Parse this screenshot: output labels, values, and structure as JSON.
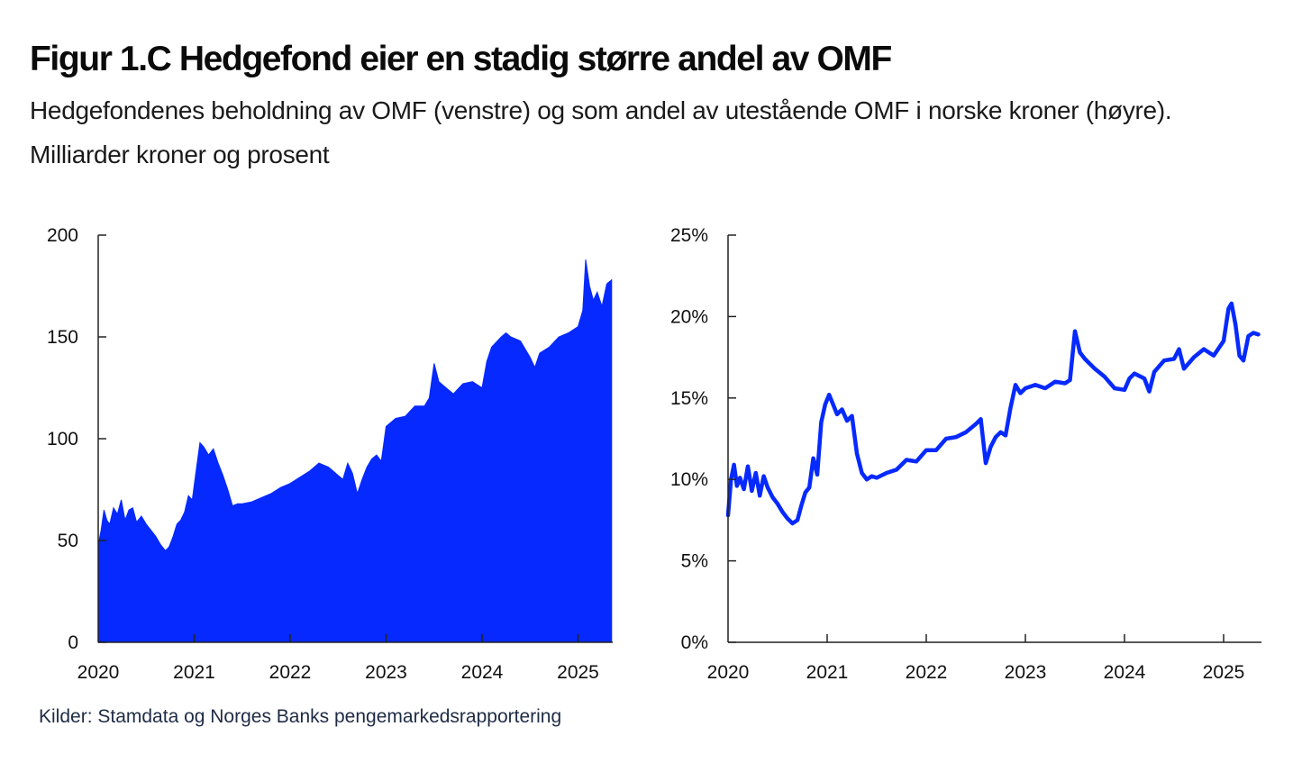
{
  "figure": {
    "title": "Figur 1.C Hedgefond eier en stadig større andel av OMF",
    "subtitle": "Hedgefondenes beholdning av OMF (venstre) og som andel av utestående OMF i norske kroner (høyre). Milliarder kroner og prosent",
    "source": "Kilder: Stamdata og Norges Banks pengemarkedsrapportering",
    "series_color": "#0529ff"
  },
  "chart_data": [
    {
      "type": "area",
      "title": "Hedgefondenes beholdning av OMF",
      "ylabel": "Milliarder kroner",
      "xlabel": "",
      "xlim": [
        2020.0,
        2025.37
      ],
      "ylim": [
        0,
        200
      ],
      "yticks": [
        0,
        50,
        100,
        150,
        200
      ],
      "ytick_labels": [
        "0",
        "50",
        "100",
        "150",
        "200"
      ],
      "xticks": [
        2020,
        2021,
        2022,
        2023,
        2024,
        2025
      ],
      "xtick_labels": [
        "2020",
        "2021",
        "2022",
        "2023",
        "2024",
        "2025"
      ],
      "grid": false,
      "x": [
        2020.0,
        2020.03,
        2020.06,
        2020.09,
        2020.12,
        2020.16,
        2020.2,
        2020.24,
        2020.28,
        2020.32,
        2020.36,
        2020.4,
        2020.45,
        2020.5,
        2020.55,
        2020.6,
        2020.65,
        2020.7,
        2020.74,
        2020.78,
        2020.82,
        2020.86,
        2020.9,
        2020.94,
        2020.98,
        2021.02,
        2021.06,
        2021.1,
        2021.15,
        2021.2,
        2021.25,
        2021.3,
        2021.35,
        2021.4,
        2021.45,
        2021.5,
        2021.6,
        2021.7,
        2021.8,
        2021.9,
        2022.0,
        2022.1,
        2022.2,
        2022.3,
        2022.4,
        2022.5,
        2022.55,
        2022.6,
        2022.65,
        2022.7,
        2022.75,
        2022.8,
        2022.85,
        2022.9,
        2022.95,
        2023.0,
        2023.1,
        2023.2,
        2023.3,
        2023.4,
        2023.45,
        2023.5,
        2023.55,
        2023.6,
        2023.7,
        2023.8,
        2023.9,
        2024.0,
        2024.05,
        2024.1,
        2024.2,
        2024.25,
        2024.3,
        2024.4,
        2024.5,
        2024.55,
        2024.6,
        2024.7,
        2024.8,
        2024.9,
        2025.0,
        2025.05,
        2025.08,
        2025.12,
        2025.16,
        2025.2,
        2025.25,
        2025.3,
        2025.35
      ],
      "values": [
        48,
        55,
        65,
        60,
        58,
        66,
        63,
        70,
        60,
        65,
        66,
        59,
        62,
        58,
        55,
        52,
        48,
        45,
        47,
        52,
        58,
        60,
        64,
        72,
        70,
        84,
        98,
        96,
        92,
        95,
        88,
        82,
        75,
        67,
        68,
        68,
        69,
        71,
        73,
        76,
        78,
        81,
        84,
        88,
        86,
        82,
        80,
        88,
        83,
        73,
        80,
        86,
        90,
        92,
        89,
        106,
        110,
        111,
        116,
        116,
        120,
        137,
        128,
        126,
        122,
        127,
        128,
        125,
        138,
        145,
        150,
        152,
        150,
        148,
        140,
        135,
        142,
        145,
        150,
        152,
        155,
        163,
        188,
        175,
        168,
        172,
        165,
        176,
        178
      ]
    },
    {
      "type": "line",
      "title": "Hedgefondenes andel av utestående OMF i norske kroner",
      "ylabel": "Prosent",
      "xlabel": "",
      "xlim": [
        2020.0,
        2025.37
      ],
      "ylim": [
        0,
        25
      ],
      "yticks": [
        0,
        5,
        10,
        15,
        20,
        25
      ],
      "ytick_labels": [
        "0%",
        "5%",
        "10%",
        "15%",
        "20%",
        "25%"
      ],
      "xticks": [
        2020,
        2021,
        2022,
        2023,
        2024,
        2025
      ],
      "xtick_labels": [
        "2020",
        "2021",
        "2022",
        "2023",
        "2024",
        "2025"
      ],
      "grid": false,
      "x": [
        2020.0,
        2020.03,
        2020.06,
        2020.09,
        2020.12,
        2020.16,
        2020.2,
        2020.24,
        2020.28,
        2020.32,
        2020.36,
        2020.4,
        2020.45,
        2020.5,
        2020.55,
        2020.6,
        2020.65,
        2020.7,
        2020.74,
        2020.78,
        2020.82,
        2020.86,
        2020.9,
        2020.94,
        2020.98,
        2021.02,
        2021.06,
        2021.1,
        2021.15,
        2021.2,
        2021.25,
        2021.3,
        2021.35,
        2021.4,
        2021.45,
        2021.5,
        2021.6,
        2021.7,
        2021.8,
        2021.9,
        2022.0,
        2022.1,
        2022.2,
        2022.3,
        2022.4,
        2022.5,
        2022.55,
        2022.6,
        2022.65,
        2022.7,
        2022.75,
        2022.8,
        2022.85,
        2022.9,
        2022.95,
        2023.0,
        2023.1,
        2023.2,
        2023.3,
        2023.4,
        2023.45,
        2023.5,
        2023.55,
        2023.6,
        2023.7,
        2023.8,
        2023.9,
        2024.0,
        2024.05,
        2024.1,
        2024.2,
        2024.25,
        2024.3,
        2024.4,
        2024.5,
        2024.55,
        2024.6,
        2024.7,
        2024.8,
        2024.9,
        2025.0,
        2025.05,
        2025.08,
        2025.12,
        2025.16,
        2025.2,
        2025.25,
        2025.3,
        2025.35
      ],
      "values": [
        7.8,
        10.0,
        10.9,
        9.6,
        10.1,
        9.4,
        10.8,
        9.3,
        10.4,
        9.0,
        10.2,
        9.5,
        8.9,
        8.5,
        8.0,
        7.6,
        7.3,
        7.5,
        8.4,
        9.2,
        9.5,
        11.3,
        10.3,
        13.5,
        14.6,
        15.2,
        14.6,
        14.0,
        14.3,
        13.6,
        13.9,
        11.6,
        10.4,
        10.0,
        10.2,
        10.1,
        10.4,
        10.6,
        11.2,
        11.1,
        11.8,
        11.8,
        12.5,
        12.6,
        12.9,
        13.4,
        13.7,
        11.0,
        12.0,
        12.6,
        12.9,
        12.7,
        14.4,
        15.8,
        15.3,
        15.6,
        15.8,
        15.6,
        16.0,
        15.9,
        16.1,
        19.1,
        17.8,
        17.4,
        16.8,
        16.3,
        15.6,
        15.5,
        16.2,
        16.5,
        16.2,
        15.4,
        16.6,
        17.3,
        17.4,
        18.0,
        16.8,
        17.5,
        18.0,
        17.6,
        18.5,
        20.5,
        20.8,
        19.5,
        17.6,
        17.3,
        18.8,
        19.0,
        18.9
      ]
    }
  ]
}
